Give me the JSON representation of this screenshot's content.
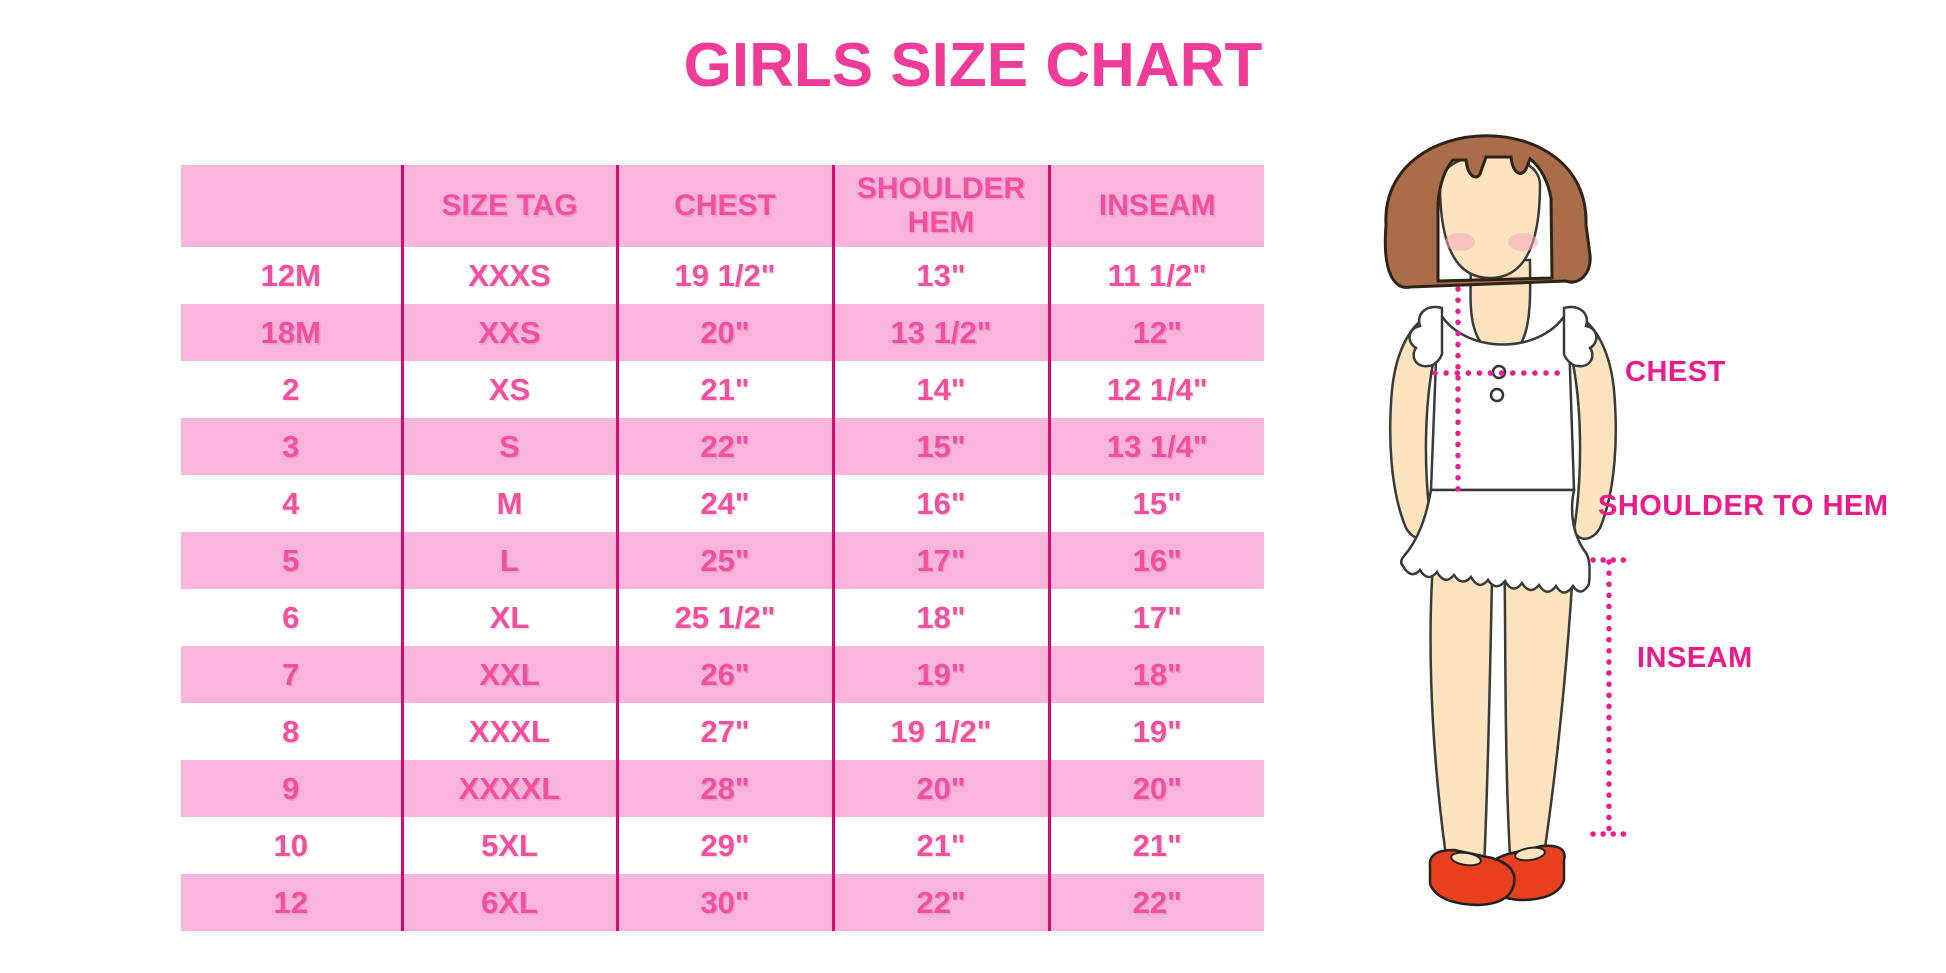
{
  "page": {
    "title": "GIRLS SIZE CHART"
  },
  "colors": {
    "title_pink": "#F03C99",
    "row_pink": "#F8B4DA",
    "divider_magenta": "#D70A73",
    "cell_text_pink": "#F2509F",
    "label_pink": "#EA1C8B",
    "shoe_red": "#E8401F",
    "hair_brown": "#A96D49",
    "skin": "#FBE4BE"
  },
  "table": {
    "columns": [
      "",
      "SIZE TAG",
      "CHEST",
      "SHOULDER HEM",
      "INSEAM"
    ],
    "rows": [
      [
        "12M",
        "XXXS",
        "19 1/2\"",
        "13\"",
        "11 1/2\""
      ],
      [
        "18M",
        "XXS",
        "20\"",
        "13 1/2\"",
        "12\""
      ],
      [
        "2",
        "XS",
        "21\"",
        "14\"",
        "12 1/4\""
      ],
      [
        "3",
        "S",
        "22\"",
        "15\"",
        "13 1/4\""
      ],
      [
        "4",
        "M",
        "24\"",
        "16\"",
        "15\""
      ],
      [
        "5",
        "L",
        "25\"",
        "17\"",
        "16\""
      ],
      [
        "6",
        "XL",
        "25 1/2\"",
        "18\"",
        "17\""
      ],
      [
        "7",
        "XXL",
        "26\"",
        "19\"",
        "18\""
      ],
      [
        "8",
        "XXXL",
        "27\"",
        "19 1/2\"",
        "19\""
      ],
      [
        "9",
        "XXXXL",
        "28\"",
        "20\"",
        "20\""
      ],
      [
        "10",
        "5XL",
        "29\"",
        "21\"",
        "21\""
      ],
      [
        "12",
        "6XL",
        "30\"",
        "22\"",
        "22\""
      ]
    ]
  },
  "diagram": {
    "labels": {
      "chest": "CHEST",
      "shoulder_to_hem": "SHOULDER TO HEM",
      "inseam": "INSEAM"
    }
  },
  "chart_data": {
    "type": "table",
    "title": "GIRLS SIZE CHART",
    "columns": [
      "",
      "SIZE TAG",
      "CHEST",
      "SHOULDER HEM",
      "INSEAM"
    ],
    "rows": [
      [
        "12M",
        "XXXS",
        "19 1/2\"",
        "13\"",
        "11 1/2\""
      ],
      [
        "18M",
        "XXS",
        "20\"",
        "13 1/2\"",
        "12\""
      ],
      [
        "2",
        "XS",
        "21\"",
        "14\"",
        "12 1/4\""
      ],
      [
        "3",
        "S",
        "22\"",
        "15\"",
        "13 1/4\""
      ],
      [
        "4",
        "M",
        "24\"",
        "16\"",
        "15\""
      ],
      [
        "5",
        "L",
        "25\"",
        "17\"",
        "16\""
      ],
      [
        "6",
        "XL",
        "25 1/2\"",
        "18\"",
        "17\""
      ],
      [
        "7",
        "XXL",
        "26\"",
        "19\"",
        "18\""
      ],
      [
        "8",
        "XXXL",
        "27\"",
        "19 1/2\"",
        "19\""
      ],
      [
        "9",
        "XXXXL",
        "28\"",
        "20\"",
        "20\""
      ],
      [
        "10",
        "5XL",
        "29\"",
        "21\"",
        "21\""
      ],
      [
        "12",
        "6XL",
        "30\"",
        "22\"",
        "22\""
      ]
    ],
    "annotations": [
      "CHEST",
      "SHOULDER TO HEM",
      "INSEAM"
    ],
    "legend_position": "none",
    "grid": "internal vertical magenta dividers, alternating pink/white rows"
  }
}
